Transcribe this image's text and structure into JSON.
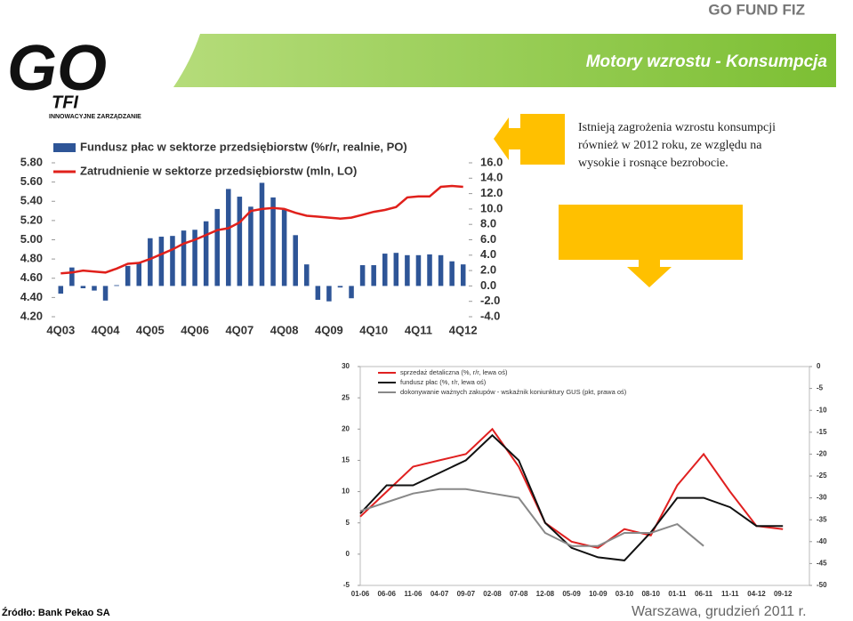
{
  "header": {
    "brand": "GO FUND FIZ",
    "title": "Motory wzrostu - Konsumpcja"
  },
  "logo": {
    "text": "GO",
    "sub": "TFI",
    "tagline": "INNOWACYJNE ZARZĄDZANIE"
  },
  "note": {
    "lines": [
      "Istnieją zagrożenia wzrostu konsumpcji",
      "również w 2012 roku, ze względu na",
      "wysokie i rosnące bezrobocie."
    ]
  },
  "footer": {
    "source": "Źródło: Bank Pekao SA",
    "place": "Warszawa, grudzień 2011 r."
  },
  "chart_data": [
    {
      "type": "bar_line",
      "categories": [
        "4Q03",
        null,
        null,
        null,
        "4Q04",
        null,
        null,
        null,
        "4Q05",
        null,
        null,
        null,
        "4Q06",
        null,
        null,
        null,
        "4Q07",
        null,
        null,
        null,
        "4Q08",
        null,
        null,
        null,
        "4Q09",
        null,
        null,
        null,
        "4Q10",
        null,
        null,
        null,
        "4Q11",
        null,
        null,
        null,
        "4Q12"
      ],
      "series": [
        {
          "name": "Fundusz płac w sektorze przedsiębiorstw (%r/r, realnie, PO)",
          "type": "bar",
          "axis": "y2",
          "color": "#2e5597",
          "values": [
            -1.0,
            2.4,
            -0.3,
            -0.6,
            -1.9,
            0.1,
            2.6,
            3.1,
            6.2,
            6.4,
            6.5,
            7.2,
            7.3,
            8.4,
            10.0,
            12.6,
            11.6,
            10.3,
            13.4,
            11.5,
            9.9,
            6.6,
            2.8,
            -1.8,
            -2.0,
            -0.2,
            -1.6,
            2.7,
            2.7,
            4.2,
            4.3,
            4.0,
            4.0,
            4.1,
            4.0,
            3.2,
            2.8
          ]
        },
        {
          "name": "Zatrudnienie w sektorze przedsiębiorstw (mln, LO)",
          "type": "line",
          "axis": "y",
          "color": "#e0201b",
          "values": [
            4.65,
            4.66,
            4.68,
            4.67,
            4.66,
            4.7,
            4.75,
            4.76,
            4.8,
            4.85,
            4.9,
            4.96,
            5.0,
            5.05,
            5.1,
            5.12,
            5.18,
            5.3,
            5.32,
            5.33,
            5.32,
            5.28,
            5.25,
            5.24,
            5.23,
            5.22,
            5.23,
            5.26,
            5.29,
            5.31,
            5.34,
            5.44,
            5.45,
            5.45,
            5.55,
            5.56,
            5.55
          ]
        }
      ],
      "ylim": [
        4.2,
        5.8
      ],
      "yticks": [
        {
          "value": 4.2,
          "label": "4.20"
        },
        {
          "value": 4.4,
          "label": "4.40"
        },
        {
          "value": 4.6,
          "label": "4.60"
        },
        {
          "value": 4.8,
          "label": "4.80"
        },
        {
          "value": 5.0,
          "label": "5.00"
        },
        {
          "value": 5.2,
          "label": "5.20"
        },
        {
          "value": 5.4,
          "label": "5.40"
        },
        {
          "value": 5.6,
          "label": "5.60"
        },
        {
          "value": 5.8,
          "label": "5.80"
        }
      ],
      "y2lim": [
        -4,
        16
      ],
      "y2ticks": [
        {
          "value": -4,
          "label": "-4.0"
        },
        {
          "value": -2,
          "label": "-2.0"
        },
        {
          "value": 0,
          "label": "0.0"
        },
        {
          "value": 2,
          "label": "2.0"
        },
        {
          "value": 4,
          "label": "4.0"
        },
        {
          "value": 6,
          "label": "6.0"
        },
        {
          "value": 8,
          "label": "8.0"
        },
        {
          "value": 10,
          "label": "10.0"
        },
        {
          "value": 12,
          "label": "12.0"
        },
        {
          "value": 14,
          "label": "14.0"
        },
        {
          "value": 16,
          "label": "16.0"
        }
      ]
    },
    {
      "type": "line",
      "categories": [
        "01-06",
        "06-06",
        "11-06",
        "04-07",
        "09-07",
        "02-08",
        "07-08",
        "12-08",
        "05-09",
        "10-09",
        "03-10",
        "08-10",
        "01-11",
        "06-11",
        "11-11",
        "04-12",
        "09-12"
      ],
      "series": [
        {
          "name": "sprzedaż detaliczna (%, r/r, lewa oś)",
          "axis": "y",
          "color": "#e02020",
          "values": [
            6,
            10,
            14,
            15,
            16,
            20,
            14,
            5,
            2,
            1,
            4,
            3,
            11,
            16,
            10,
            4.5,
            4
          ]
        },
        {
          "name": "fundusz płac (%, r/r, lewa oś)",
          "axis": "y",
          "color": "#111111",
          "values": [
            6.5,
            11,
            11,
            13,
            15,
            19,
            15,
            5,
            1,
            -0.5,
            -1,
            3.5,
            9,
            9,
            7.5,
            4.5,
            4.5
          ]
        },
        {
          "name": "dokonywanie ważnych zakupów - wskaźnik koniunktury GUS (pkt, prawa oś)",
          "axis": "y2",
          "color": "#888888",
          "values": [
            -33,
            -31,
            -29,
            -28,
            -28,
            -29,
            -30,
            -38,
            -41,
            -41,
            -38,
            -38,
            -36,
            -41,
            null,
            null,
            null
          ]
        }
      ],
      "ylim": [
        -5,
        30
      ],
      "yticks": [
        -5,
        0,
        5,
        10,
        15,
        20,
        25,
        30
      ],
      "y2lim": [
        -50,
        0
      ],
      "y2ticks": [
        -50,
        -45,
        -40,
        -35,
        -30,
        -25,
        -20,
        -15,
        -10,
        -5,
        0
      ]
    }
  ]
}
